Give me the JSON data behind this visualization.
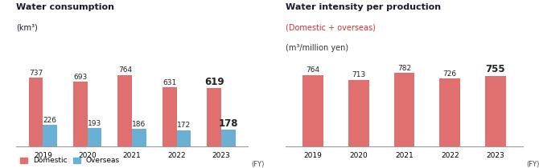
{
  "left_title": "Water consumption",
  "left_subtitle": "(km³)",
  "right_title": "Water intensity per production",
  "right_subtitle1": "(Domestic + overseas)",
  "right_subtitle2": "(m³/million yen)",
  "years": [
    "2019",
    "2020",
    "2021",
    "2022",
    "2023"
  ],
  "left_domestic": [
    737,
    693,
    764,
    631,
    619
  ],
  "left_overseas": [
    226,
    193,
    186,
    172,
    178
  ],
  "right_values": [
    764,
    713,
    782,
    726,
    755
  ],
  "domestic_color": "#e07070",
  "overseas_color": "#6ab0d4",
  "right_color": "#e07070",
  "title_color": "#1a1a2e",
  "subtitle_red_color": "#cc3333",
  "subtitle_black_color": "#333333",
  "fy_label": "(FY)",
  "legend_domestic": "Domestic",
  "legend_overseas": "Overseas",
  "bar_width": 0.32,
  "left_ylim": [
    0,
    900
  ],
  "right_ylim": [
    0,
    900
  ]
}
